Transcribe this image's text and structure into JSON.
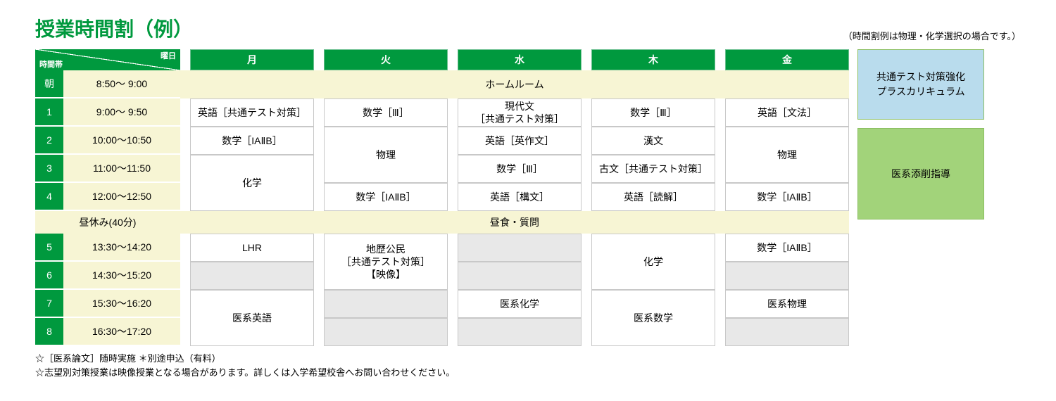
{
  "title": "授業時間割（例）",
  "subtitle": "（時間割例は物理・化学選択の場合です。）",
  "corner": {
    "day_label": "曜日",
    "time_label": "時間帯"
  },
  "days": [
    "月",
    "火",
    "水",
    "木",
    "金"
  ],
  "periods": [
    {
      "num": "朝",
      "time": "8:50～  9:00"
    },
    {
      "num": "1",
      "time": "9:00～  9:50"
    },
    {
      "num": "2",
      "time": "10:00～10:50"
    },
    {
      "num": "3",
      "time": "11:00～11:50"
    },
    {
      "num": "4",
      "time": "12:00～12:50"
    },
    {
      "num": "5",
      "time": "13:30～14:20"
    },
    {
      "num": "6",
      "time": "14:30～15:20"
    },
    {
      "num": "7",
      "time": "15:30～16:20"
    },
    {
      "num": "8",
      "time": "16:30～17:20"
    }
  ],
  "morning_span": "ホームルーム",
  "lunch": {
    "left": "昼休み(40分)",
    "span": "昼食・質問"
  },
  "cells": {
    "mon": {
      "p1": "英語［共通テスト対策］",
      "p2": "数学［IAⅡB］",
      "p3_4": "化学",
      "p5": "LHR",
      "p7_8": "医系英語"
    },
    "tue": {
      "p1": "数学［Ⅲ］",
      "p2_3": "物理",
      "p4": "数学［IAⅡB］",
      "p5_6": "地歴公民\n［共通テスト対策］\n【映像】"
    },
    "wed": {
      "p1": "現代文\n［共通テスト対策］",
      "p2": "英語［英作文］",
      "p3": "数学［Ⅲ］",
      "p4": "英語［構文］",
      "p7": "医系化学"
    },
    "thu": {
      "p1": "数学［Ⅲ］",
      "p2": "漢文",
      "p3": "古文［共通テスト対策］",
      "p4": "英語［読解］",
      "p5_6": "化学",
      "p7_8": "医系数学"
    },
    "fri": {
      "p1": "英語［文法］",
      "p2_3": "物理",
      "p4": "数学［IAⅡB］",
      "p5": "数学［IAⅡB］",
      "p7": "医系物理"
    }
  },
  "side_boxes": {
    "blue": "共通テスト対策強化\nプラスカリキュラム",
    "green": "医系添削指導"
  },
  "footnotes": [
    "☆［医系論文］随時実施 ＊別途申込（有料）",
    "☆志望別対策授業は映像授業となる場合があります。詳しくは入学希望校舎へお問い合わせください。"
  ],
  "colors": {
    "primary_green": "#00993e",
    "cream": "#f7f5d4",
    "cell_border": "#c8c8c8",
    "gray_cell": "#e8e8e8",
    "side_blue": "#b9dced",
    "side_green": "#a2d37a",
    "side_border": "#8bbf61"
  }
}
